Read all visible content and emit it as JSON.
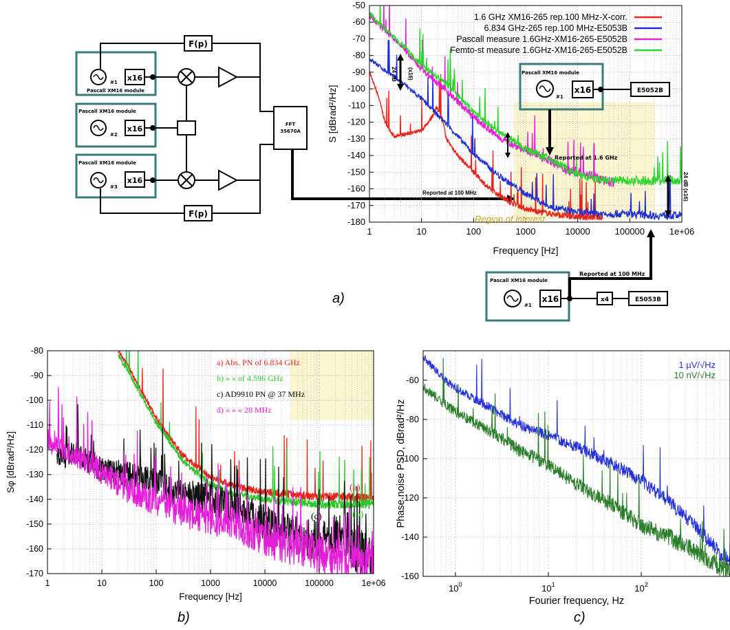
{
  "panel_labels": {
    "a": "a)",
    "b": "b)",
    "c": "c)"
  },
  "diagram_a": {
    "module_label": "Pascall XM16 module",
    "mult_label": "x16",
    "osc1_num": "#1",
    "osc2_num": "#2",
    "osc3_num": "#3",
    "filter_label": "F(p)",
    "fft_label1": "FFT",
    "fft_label2": "35670A"
  },
  "inset_top": {
    "module_label": "Pascall XM16 module",
    "mult_label": "x16",
    "osc_num": "#1",
    "analyzer": "E5052B",
    "reported": "Reported at 1.6 GHz"
  },
  "inset_bottom": {
    "module_label": "Pascall XM16 module",
    "mult_label": "x16",
    "osc_num": "#1",
    "x4": "x4",
    "analyzer": "E5053B",
    "reported": "Reported at 100 MHz"
  },
  "chart_data": [
    {
      "id": "a",
      "type": "line",
      "xlabel": "Frequency [Hz]",
      "ylabel": "S  [dBrad²/Hz]",
      "xscale": "log",
      "xlim": [
        1,
        1000000
      ],
      "ylim": [
        -180,
        -50
      ],
      "xticks": [
        "1",
        "10",
        "100",
        "1000",
        "10000",
        "100000",
        "1e+06"
      ],
      "yticks": [
        "-50",
        "-60",
        "-70",
        "-80",
        "-90",
        "-100",
        "-110",
        "-120",
        "-130",
        "-140",
        "-150",
        "-160",
        "-170",
        "-180"
      ],
      "legend_position": "top-right",
      "grid": true,
      "annotations": {
        "db24_left": "24 dB",
        "x16_left": "(x16)",
        "db24_right": "24 dB (x16)",
        "reported_100": "Reported at 100 MHz",
        "region": "Region of interest"
      },
      "series": [
        {
          "name": "1.6 GHz XM16-265 rep.100 MHz-X-corr.",
          "color": "#e8231b",
          "x": [
            1,
            1.5,
            2,
            3,
            5,
            8,
            10,
            15,
            20,
            25,
            30,
            50,
            100,
            200,
            500,
            1000,
            2000,
            5000,
            10000,
            30000
          ],
          "y": [
            -90,
            -105,
            -120,
            -129,
            -127,
            -126,
            -125,
            -118,
            -111,
            -118,
            -130,
            -140,
            -150,
            -160,
            -168,
            -172,
            -174,
            -176,
            -177,
            -177
          ]
        },
        {
          "name": "6.834 GHz-265 rep.100 MHz-E5053B",
          "color": "#1f2fd4",
          "x": [
            1,
            2,
            5,
            10,
            30,
            100,
            300,
            1000,
            3000,
            10000,
            30000,
            100000,
            300000,
            1000000
          ],
          "y": [
            -82,
            -89,
            -98,
            -106,
            -121,
            -139,
            -152,
            -163,
            -171,
            -174,
            -175,
            -175,
            -176,
            -176
          ]
        },
        {
          "name": "Pascall measure 1.6GHz-XM16-265-E5052B",
          "color": "#e51fd9",
          "x": [
            1,
            2,
            5,
            10,
            30,
            100,
            300,
            1000,
            3000,
            5000,
            10000,
            20000,
            30000,
            50000
          ],
          "y": [
            -56,
            -65,
            -77,
            -88,
            -101,
            -117,
            -129,
            -137,
            -143,
            -148,
            -150,
            -152,
            -155,
            -156
          ]
        },
        {
          "name": "Femto-st measure 1.6GHz-XM16-265-E5052B",
          "color": "#2cd62c",
          "x": [
            1,
            2,
            5,
            10,
            30,
            100,
            300,
            1000,
            2000,
            5000,
            10000,
            30000,
            100000,
            300000,
            1000000
          ],
          "y": [
            -55,
            -64,
            -76,
            -86,
            -97,
            -114,
            -126,
            -136,
            -140,
            -146,
            -152,
            -155,
            -155,
            -155,
            -155
          ]
        }
      ]
    },
    {
      "id": "b",
      "type": "line",
      "xlabel": "Frequency [Hz]",
      "ylabel": "Sφ [dBrad²/Hz]",
      "xscale": "log",
      "xlim": [
        1,
        1000000
      ],
      "ylim": [
        -170,
        -80
      ],
      "xticks": [
        "1",
        "10",
        "100",
        "1000",
        "10000",
        "100000",
        "1e+06"
      ],
      "yticks": [
        "-80",
        "-90",
        "-100",
        "-110",
        "-120",
        "-130",
        "-140",
        "-150",
        "-160",
        "-170"
      ],
      "grid": true,
      "legend_position": "top-right",
      "legend": [
        {
          "text": "a) Abs. PN of 6.834 GHz",
          "color": "#e8231b"
        },
        {
          "text": "b)    «     «  of 4.596 GHz",
          "color": "#2cc62c"
        },
        {
          "text": "c) AD9910 PN @ 37 MHz",
          "color": "#000000"
        },
        {
          "text": "d)      «            «   « 28 MHz",
          "color": "#e51fd9"
        }
      ],
      "curve_labels": [
        {
          "text": "(a)",
          "color": "#e8231b"
        },
        {
          "text": "(b)",
          "color": "#2cc62c"
        },
        {
          "text": "(c)",
          "color": "#000000"
        },
        {
          "text": "(d)",
          "color": "#e51fd9"
        }
      ],
      "series": [
        {
          "color": "#e8231b",
          "x": [
            20,
            30,
            50,
            100,
            300,
            1000,
            3000,
            10000,
            30000,
            100000,
            300000,
            1000000
          ],
          "y": [
            -80,
            -86,
            -95,
            -107,
            -122,
            -131,
            -135,
            -137,
            -138,
            -139,
            -139,
            -140
          ]
        },
        {
          "color": "#2cc62c",
          "x": [
            20,
            30,
            50,
            100,
            300,
            1000,
            3000,
            10000,
            30000,
            100000,
            300000,
            1000000
          ],
          "y": [
            -82,
            -88,
            -97,
            -109,
            -124,
            -134,
            -138,
            -140,
            -141,
            -142,
            -142,
            -142
          ]
        },
        {
          "color": "#111111",
          "x": [
            1.5,
            2,
            3,
            5,
            10,
            30,
            100,
            300,
            1000,
            3000,
            10000,
            30000,
            100000,
            200000,
            500000,
            1000000
          ],
          "y": [
            -122,
            -123,
            -121,
            -124,
            -128,
            -130,
            -133,
            -138,
            -140,
            -143,
            -149,
            -154,
            -157,
            -153,
            -162,
            -163
          ]
        },
        {
          "color": "#e51fd9",
          "x": [
            1,
            2,
            5,
            10,
            30,
            100,
            300,
            1000,
            3000,
            10000,
            30000,
            100000,
            200000,
            500000,
            1000000
          ],
          "y": [
            -117,
            -120,
            -124,
            -129,
            -136,
            -141,
            -145,
            -148,
            -150,
            -156,
            -159,
            -162,
            -164,
            -165,
            -165
          ]
        }
      ]
    },
    {
      "id": "c",
      "type": "line",
      "xlabel": "Fourier frequency, Hz",
      "ylabel": "Phase noise PSD, dBrad²/Hz",
      "xscale": "log",
      "xlim": [
        0.45,
        900
      ],
      "ylim": [
        -160,
        -45
      ],
      "xticks": [
        "10^0",
        "10^1",
        "10^2"
      ],
      "yticks": [
        "-60",
        "-80",
        "-100",
        "-120",
        "-140",
        "-160"
      ],
      "grid": true,
      "legend_position": "top-right",
      "series": [
        {
          "name": "1 µV/√Hz",
          "color": "#2430d8",
          "x": [
            0.45,
            0.7,
            1,
            2,
            3,
            5,
            10,
            20,
            50,
            100,
            200,
            400,
            700,
            900
          ],
          "y": [
            -48,
            -58,
            -64,
            -72,
            -77,
            -83,
            -88,
            -94,
            -103,
            -111,
            -122,
            -135,
            -148,
            -152
          ]
        },
        {
          "name": "10 nV/√Hz",
          "color": "#2a7d2a",
          "x": [
            0.45,
            0.7,
            1,
            2,
            3,
            5,
            10,
            20,
            50,
            100,
            200,
            400,
            700,
            900
          ],
          "y": [
            -63,
            -71,
            -76,
            -84,
            -89,
            -96,
            -103,
            -113,
            -124,
            -134,
            -140,
            -148,
            -155,
            -158
          ]
        }
      ]
    }
  ]
}
